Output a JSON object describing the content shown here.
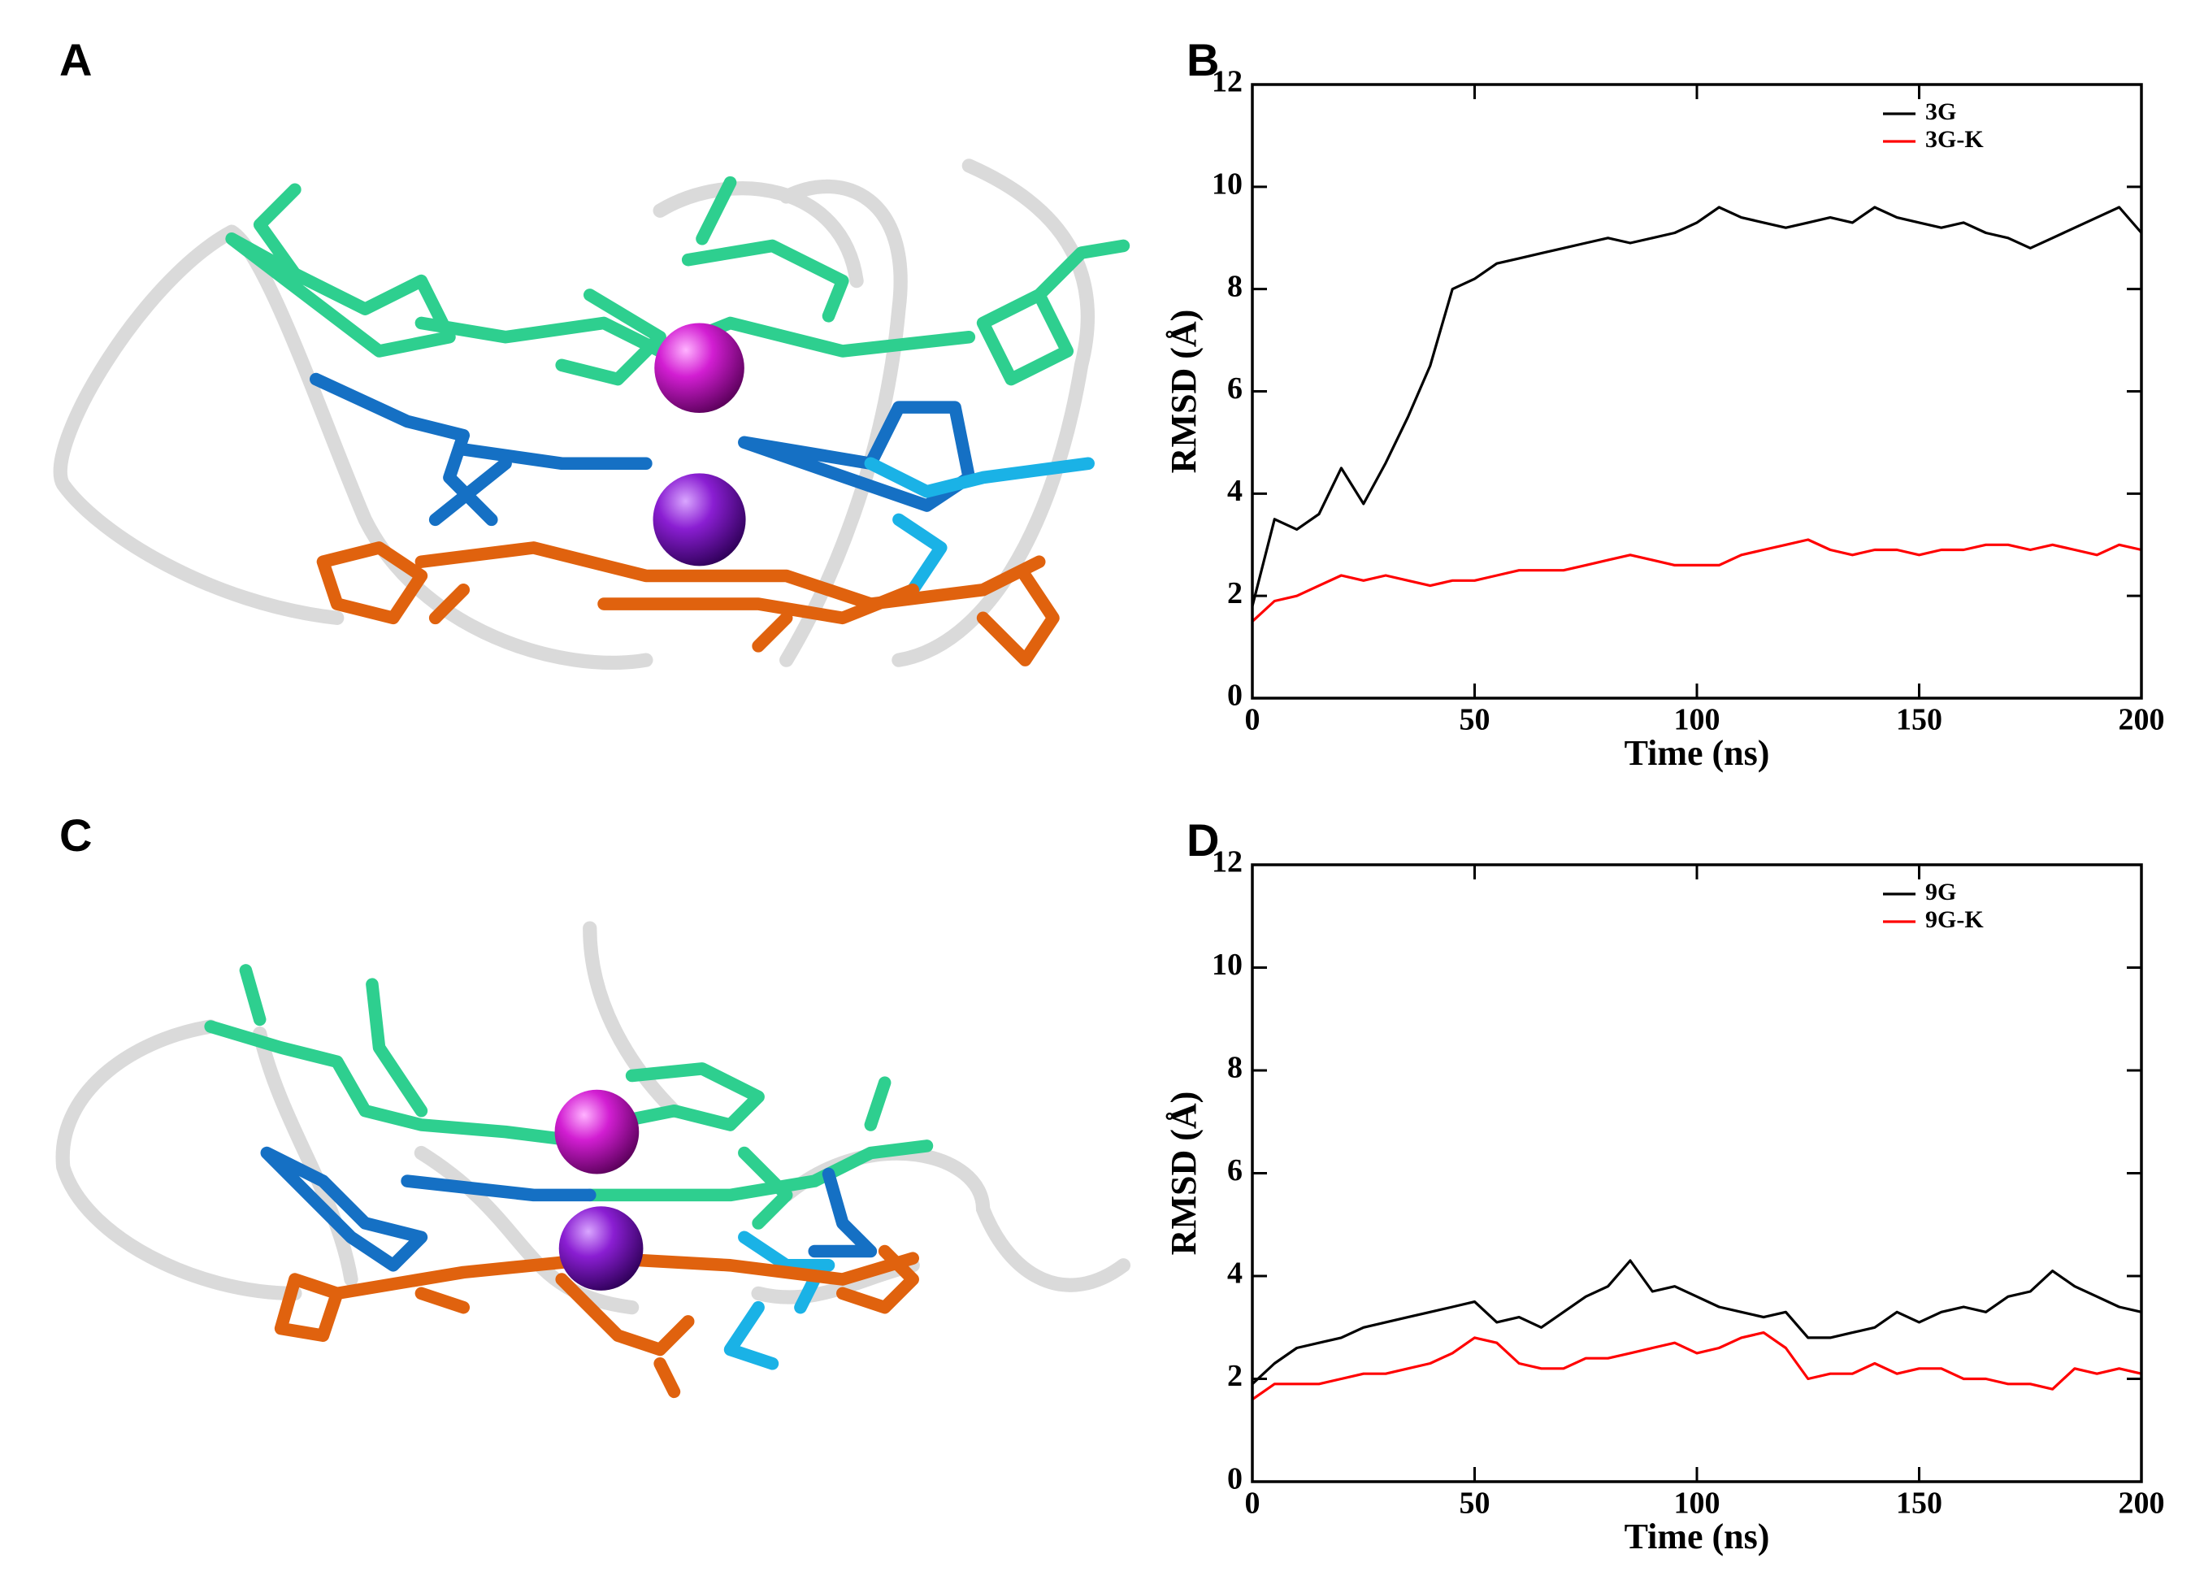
{
  "panels": [
    {
      "label": "A"
    },
    {
      "label": "C"
    }
  ],
  "chart_data": [
    {
      "type": "line",
      "panel": "B",
      "x_label": "Time (ns)",
      "y_label": "RMSD (Å)",
      "x": [
        0,
        5,
        10,
        15,
        20,
        25,
        30,
        35,
        40,
        45,
        50,
        55,
        60,
        65,
        70,
        75,
        80,
        85,
        90,
        95,
        100,
        105,
        110,
        115,
        120,
        125,
        130,
        135,
        140,
        145,
        150,
        155,
        160,
        165,
        170,
        175,
        180,
        185,
        190,
        195,
        200
      ],
      "series": [
        {
          "name": "3G",
          "color": "#000000",
          "values": [
            1.8,
            3.5,
            3.3,
            3.6,
            4.5,
            3.8,
            4.6,
            5.5,
            6.5,
            8.0,
            8.2,
            8.5,
            8.6,
            8.7,
            8.8,
            8.9,
            9.0,
            8.9,
            9.0,
            9.1,
            9.3,
            9.6,
            9.4,
            9.3,
            9.2,
            9.3,
            9.4,
            9.3,
            9.6,
            9.4,
            9.3,
            9.2,
            9.3,
            9.1,
            9.0,
            8.8,
            9.0,
            9.2,
            9.4,
            9.6,
            9.1
          ]
        },
        {
          "name": "3G-K",
          "color": "#ff0000",
          "values": [
            1.5,
            1.9,
            2.0,
            2.2,
            2.4,
            2.3,
            2.4,
            2.3,
            2.2,
            2.3,
            2.3,
            2.4,
            2.5,
            2.5,
            2.5,
            2.6,
            2.7,
            2.8,
            2.7,
            2.6,
            2.6,
            2.6,
            2.8,
            2.9,
            3.0,
            3.1,
            2.9,
            2.8,
            2.9,
            2.9,
            2.8,
            2.9,
            2.9,
            3.0,
            3.0,
            2.9,
            3.0,
            2.9,
            2.8,
            3.0,
            2.9
          ]
        }
      ],
      "xlim": [
        0,
        200
      ],
      "xticks": [
        0,
        50,
        100,
        150,
        200
      ],
      "ylim": [
        0,
        12
      ],
      "yticks": [
        0,
        2,
        4,
        6,
        8,
        10,
        12
      ],
      "legend": "upper right"
    },
    {
      "type": "line",
      "panel": "D",
      "x_label": "Time (ns)",
      "y_label": "RMSD (Å)",
      "x": [
        0,
        5,
        10,
        15,
        20,
        25,
        30,
        35,
        40,
        45,
        50,
        55,
        60,
        65,
        70,
        75,
        80,
        85,
        90,
        95,
        100,
        105,
        110,
        115,
        120,
        125,
        130,
        135,
        140,
        145,
        150,
        155,
        160,
        165,
        170,
        175,
        180,
        185,
        190,
        195,
        200
      ],
      "series": [
        {
          "name": "9G",
          "color": "#000000",
          "values": [
            1.9,
            2.3,
            2.6,
            2.7,
            2.8,
            3.0,
            3.1,
            3.2,
            3.3,
            3.4,
            3.5,
            3.1,
            3.2,
            3.0,
            3.3,
            3.6,
            3.8,
            4.3,
            3.7,
            3.8,
            3.6,
            3.4,
            3.3,
            3.2,
            3.3,
            2.8,
            2.8,
            2.9,
            3.0,
            3.3,
            3.1,
            3.3,
            3.4,
            3.3,
            3.6,
            3.7,
            4.1,
            3.8,
            3.6,
            3.4,
            3.3
          ]
        },
        {
          "name": "9G-K",
          "color": "#ff0000",
          "values": [
            1.6,
            1.9,
            1.9,
            1.9,
            2.0,
            2.1,
            2.1,
            2.2,
            2.3,
            2.5,
            2.8,
            2.7,
            2.3,
            2.2,
            2.2,
            2.4,
            2.4,
            2.5,
            2.6,
            2.7,
            2.5,
            2.6,
            2.8,
            2.9,
            2.6,
            2.0,
            2.1,
            2.1,
            2.3,
            2.1,
            2.2,
            2.2,
            2.0,
            2.0,
            1.9,
            1.9,
            1.8,
            2.2,
            2.1,
            2.2,
            2.1
          ]
        }
      ],
      "xlim": [
        0,
        200
      ],
      "xticks": [
        0,
        50,
        100,
        150,
        200
      ],
      "ylim": [
        0,
        12
      ],
      "yticks": [
        0,
        2,
        4,
        6,
        8,
        10,
        12
      ],
      "legend": "upper right"
    }
  ]
}
